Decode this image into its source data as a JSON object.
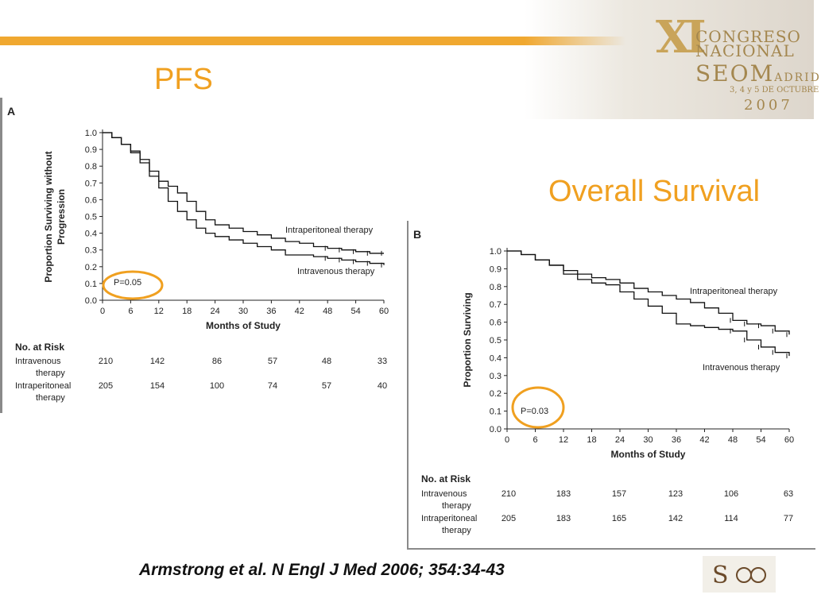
{
  "slide": {
    "pfs_title": "PFS",
    "os_title": "Overall Survival",
    "citation": "Armstrong et al. N Engl J Med 2006; 354:34-43"
  },
  "logo": {
    "numeral": "XI",
    "line1": "CONGRESO",
    "line2": "NACIONAL",
    "brand": "SEOM",
    "city": "ADRID",
    "dates": "3, 4 y 5 DE OCTUBRE",
    "year": "2007",
    "accent": "#c9a45a"
  },
  "colors": {
    "accent_orange": "#f0a020",
    "bar": "#f0a830",
    "circle": "#f0a020"
  },
  "chart_data": [
    {
      "type": "line",
      "panel_label": "A",
      "xlabel": "Months of Study",
      "ylabel_line1": "Proportion Surviving without",
      "ylabel_line2": "Progression",
      "xlim": [
        0,
        60
      ],
      "ylim": [
        0,
        1.0
      ],
      "x_ticks": [
        "0",
        "6",
        "12",
        "18",
        "24",
        "30",
        "36",
        "42",
        "48",
        "54",
        "60"
      ],
      "y_ticks": [
        "0.0",
        "0.1",
        "0.2",
        "0.3",
        "0.4",
        "0.5",
        "0.6",
        "0.7",
        "0.8",
        "0.9",
        "1.0"
      ],
      "p_value": "P=0.05",
      "series": [
        {
          "name": "Intraperitoneal therapy",
          "x": [
            0,
            2,
            4,
            6,
            8,
            10,
            12,
            14,
            16,
            18,
            20,
            22,
            24,
            27,
            30,
            33,
            36,
            39,
            42,
            45,
            48,
            51,
            54,
            57,
            60
          ],
          "y": [
            1.0,
            0.97,
            0.93,
            0.89,
            0.84,
            0.77,
            0.71,
            0.68,
            0.64,
            0.59,
            0.53,
            0.48,
            0.45,
            0.43,
            0.41,
            0.39,
            0.37,
            0.35,
            0.34,
            0.32,
            0.31,
            0.3,
            0.29,
            0.28,
            0.28
          ]
        },
        {
          "name": "Intravenous therapy",
          "x": [
            0,
            2,
            4,
            6,
            8,
            10,
            12,
            14,
            16,
            18,
            20,
            22,
            24,
            27,
            30,
            33,
            36,
            39,
            42,
            45,
            48,
            51,
            54,
            57,
            60
          ],
          "y": [
            1.0,
            0.97,
            0.93,
            0.88,
            0.82,
            0.74,
            0.67,
            0.59,
            0.53,
            0.48,
            0.43,
            0.4,
            0.38,
            0.36,
            0.34,
            0.32,
            0.3,
            0.27,
            0.27,
            0.26,
            0.25,
            0.24,
            0.23,
            0.22,
            0.21
          ]
        }
      ],
      "risk": {
        "title": "No. at Risk",
        "rows": [
          {
            "label1": "Intravenous",
            "label2": "therapy",
            "values": [
              "210",
              "142",
              "86",
              "57",
              "48",
              "33"
            ]
          },
          {
            "label1": "Intraperitoneal",
            "label2": "therapy",
            "values": [
              "205",
              "154",
              "100",
              "74",
              "57",
              "40"
            ]
          }
        ]
      }
    },
    {
      "type": "line",
      "panel_label": "B",
      "xlabel": "Months of Study",
      "ylabel_line1": "Proportion Surviving",
      "ylabel_line2": "",
      "xlim": [
        0,
        60
      ],
      "ylim": [
        0,
        1.0
      ],
      "x_ticks": [
        "0",
        "6",
        "12",
        "18",
        "24",
        "30",
        "36",
        "42",
        "48",
        "54",
        "60"
      ],
      "y_ticks": [
        "0.0",
        "0.1",
        "0.2",
        "0.3",
        "0.4",
        "0.5",
        "0.6",
        "0.7",
        "0.8",
        "0.9",
        "1.0"
      ],
      "p_value": "P=0.03",
      "series": [
        {
          "name": "Intraperitoneal therapy",
          "x": [
            0,
            3,
            6,
            9,
            12,
            15,
            18,
            21,
            24,
            27,
            30,
            33,
            36,
            39,
            42,
            45,
            48,
            51,
            54,
            57,
            60
          ],
          "y": [
            1.0,
            0.98,
            0.95,
            0.92,
            0.89,
            0.87,
            0.85,
            0.84,
            0.82,
            0.79,
            0.77,
            0.75,
            0.73,
            0.71,
            0.68,
            0.65,
            0.61,
            0.59,
            0.58,
            0.55,
            0.53
          ]
        },
        {
          "name": "Intravenous therapy",
          "x": [
            0,
            3,
            6,
            9,
            12,
            15,
            18,
            21,
            24,
            27,
            30,
            33,
            36,
            39,
            42,
            45,
            48,
            51,
            54,
            57,
            60
          ],
          "y": [
            1.0,
            0.98,
            0.95,
            0.92,
            0.87,
            0.84,
            0.82,
            0.81,
            0.77,
            0.73,
            0.69,
            0.65,
            0.59,
            0.58,
            0.57,
            0.56,
            0.55,
            0.5,
            0.46,
            0.43,
            0.41
          ]
        }
      ],
      "risk": {
        "title": "No. at Risk",
        "rows": [
          {
            "label1": "Intravenous",
            "label2": "therapy",
            "values": [
              "210",
              "183",
              "157",
              "123",
              "106",
              "63"
            ]
          },
          {
            "label1": "Intraperitoneal",
            "label2": "therapy",
            "values": [
              "205",
              "183",
              "165",
              "142",
              "114",
              "77"
            ]
          }
        ]
      }
    }
  ]
}
